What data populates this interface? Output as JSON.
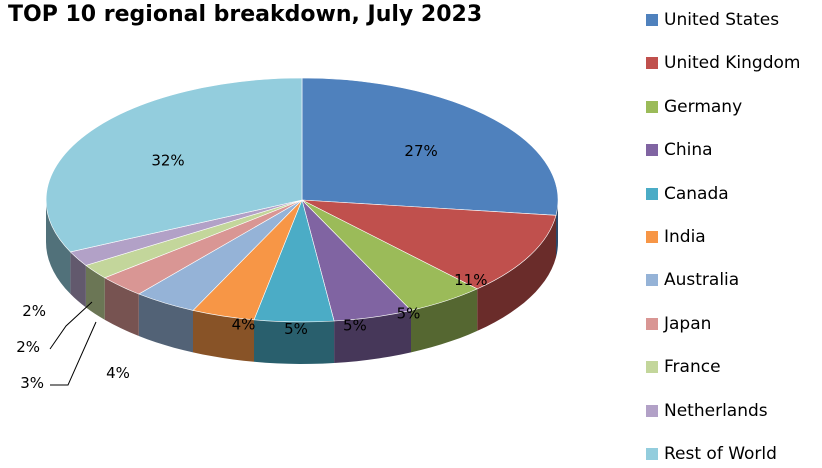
{
  "chart_data": {
    "type": "pie",
    "title": "TOP 10 regional breakdown, July 2023",
    "categories": [
      "United States",
      "United Kingdom",
      "Germany",
      "China",
      "Canada",
      "India",
      "Australia",
      "Japan",
      "France",
      "Netherlands",
      "Rest of World"
    ],
    "values": [
      27,
      11,
      5,
      5,
      5,
      4,
      4,
      3,
      2,
      2,
      32
    ],
    "data_labels": [
      "27%",
      "11%",
      "5%",
      "5%",
      "5%",
      "4%",
      "4%",
      "3%",
      "2%",
      "2%",
      "32%"
    ],
    "colors": [
      "#4f81bd",
      "#c0504d",
      "#9bbb59",
      "#8064a2",
      "#4bacc6",
      "#f79646",
      "#95b3d7",
      "#d99694",
      "#c3d69b",
      "#b2a1c7",
      "#93cddd"
    ],
    "legend_position": "right",
    "style": "3d"
  }
}
